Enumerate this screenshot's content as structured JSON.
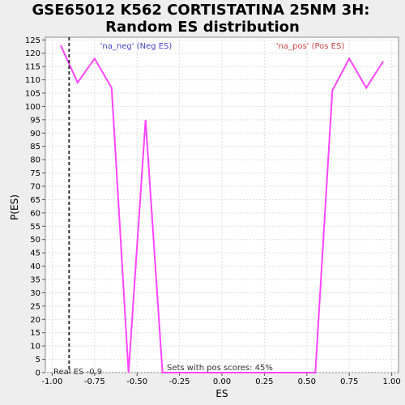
{
  "chart_data": {
    "type": "line",
    "title_line1": "GSE65012 K562 CORTISTATINA 25NM 3H:",
    "title_line2": "Random ES distribution",
    "xlabel": "ES",
    "ylabel": "P(ES)",
    "xlim": [
      -1.04,
      1.04
    ],
    "ylim": [
      0,
      126
    ],
    "x_ticks": [
      -1.0,
      -0.75,
      -0.5,
      -0.25,
      0.0,
      0.25,
      0.5,
      0.75,
      1.0
    ],
    "x_tick_labels": [
      "-1.00",
      "-0.75",
      "-0.50",
      "-0.25",
      "0.00",
      "0.25",
      "0.50",
      "0.75",
      "1.00"
    ],
    "y_ticks": [
      0,
      5,
      10,
      15,
      20,
      25,
      30,
      35,
      40,
      45,
      50,
      55,
      60,
      65,
      70,
      75,
      80,
      85,
      90,
      95,
      100,
      105,
      110,
      115,
      120,
      125
    ],
    "y_tick_labels": [
      "0",
      "5",
      "10",
      "15",
      "20",
      "25",
      "30",
      "35",
      "40",
      "45",
      "50",
      "55",
      "60",
      "65",
      "70",
      "75",
      "80",
      "85",
      "90",
      "95",
      "100",
      "105",
      "110",
      "115",
      "120",
      "125"
    ],
    "series": [
      {
        "name": "Random ES distribution",
        "color": "#ff44ff",
        "x": [
          -0.95,
          -0.85,
          -0.75,
          -0.65,
          -0.55,
          -0.45,
          -0.35,
          -0.25,
          -0.15,
          -0.05,
          0.05,
          0.15,
          0.25,
          0.35,
          0.45,
          0.55,
          0.65,
          0.75,
          0.85,
          0.95
        ],
        "y": [
          123,
          109,
          118,
          107,
          0,
          95,
          0,
          0,
          0,
          0,
          0,
          0,
          0,
          0,
          0,
          0,
          106,
          118,
          107,
          117
        ]
      }
    ],
    "real_es": -0.9,
    "real_es_label": "Real ES -0.9",
    "neg_label": "'na_neg' (Neg ES)",
    "pos_label": "'na_pos' (Pos ES)",
    "pos_scores_label": "Sets with pos scores: 45%",
    "colors": {
      "line": "#ff44ff",
      "neg_text": "#4444cc",
      "pos_text": "#cc4444",
      "grid": "#dddddd",
      "plot_bg": "#ffffff",
      "page_bg": "#eeeeee",
      "real_es_line": "#333333"
    }
  }
}
